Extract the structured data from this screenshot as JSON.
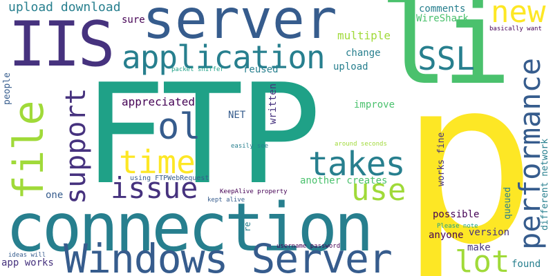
{
  "colors": {
    "background": "#ffffff",
    "palette": [
      "#440154",
      "#46327e",
      "#365c8d",
      "#277f8e",
      "#1fa187",
      "#4ac16d",
      "#a0da39",
      "#fde725"
    ]
  },
  "words": [
    {
      "text": "FTP",
      "color": "#1fa187"
    },
    {
      "text": "p",
      "color": "#fde725"
    },
    {
      "text": "li",
      "color": "#4ac16d"
    },
    {
      "text": "connection",
      "color": "#277f8e"
    },
    {
      "text": "server",
      "color": "#365c8d"
    },
    {
      "text": "IIS",
      "color": "#46327e"
    },
    {
      "text": "Windows Server",
      "color": "#365c8d"
    },
    {
      "text": "file",
      "color": "#a0da39"
    },
    {
      "text": "application",
      "color": "#277f8e"
    },
    {
      "text": "performance",
      "color": "#365c8d"
    },
    {
      "text": "takes",
      "color": "#277f8e"
    },
    {
      "text": "new",
      "color": "#fde725"
    },
    {
      "text": "SSL",
      "color": "#277f8e"
    },
    {
      "text": "ol",
      "color": "#365c8d"
    },
    {
      "text": "time",
      "color": "#fde725"
    },
    {
      "text": "support",
      "color": "#46327e"
    },
    {
      "text": "issue",
      "color": "#46327e"
    },
    {
      "text": "use",
      "color": "#a0da39"
    },
    {
      "text": "lot",
      "color": "#a0da39"
    },
    {
      "text": "upload download",
      "color": "#277f8e"
    },
    {
      "text": "comments",
      "color": "#277f8e"
    },
    {
      "text": "WireShark",
      "color": "#4ac16d"
    },
    {
      "text": "basically want",
      "color": "#440154"
    },
    {
      "text": "sure",
      "color": "#440154"
    },
    {
      "text": "multiple",
      "color": "#a0da39"
    },
    {
      "text": "change",
      "color": "#277f8e"
    },
    {
      "text": "upload",
      "color": "#277f8e"
    },
    {
      "text": "packet sniffer",
      "color": "#1fa187"
    },
    {
      "text": "reused",
      "color": "#277f8e"
    },
    {
      "text": "people",
      "color": "#365c8d"
    },
    {
      "text": "appreciated",
      "color": "#440154"
    },
    {
      "text": "written",
      "color": "#46327e"
    },
    {
      "text": "NET",
      "color": "#365c8d"
    },
    {
      "text": "improve",
      "color": "#4ac16d"
    },
    {
      "text": "works fine",
      "color": "#46327e"
    },
    {
      "text": "different network",
      "color": "#277f8e"
    },
    {
      "text": "easily see",
      "color": "#277f8e"
    },
    {
      "text": "around seconds",
      "color": "#a0da39"
    },
    {
      "text": "another creates",
      "color": "#4ac16d"
    },
    {
      "text": "using FTPWebRequest",
      "color": "#365c8d"
    },
    {
      "text": "one",
      "color": "#365c8d"
    },
    {
      "text": "KeepAlive property",
      "color": "#440154"
    },
    {
      "text": "kept alive",
      "color": "#365c8d"
    },
    {
      "text": "possible",
      "color": "#440154"
    },
    {
      "text": "queued",
      "color": "#277f8e"
    },
    {
      "text": "re",
      "color": "#277f8e"
    },
    {
      "text": "anyone",
      "color": "#440154"
    },
    {
      "text": "version",
      "color": "#46327e"
    },
    {
      "text": "Please note",
      "color": "#1fa187"
    },
    {
      "text": "ideas will",
      "color": "#365c8d"
    },
    {
      "text": "username password",
      "color": "#440154"
    },
    {
      "text": "make",
      "color": "#46327e"
    },
    {
      "text": "app works",
      "color": "#46327e"
    },
    {
      "text": "found",
      "color": "#277f8e"
    }
  ]
}
